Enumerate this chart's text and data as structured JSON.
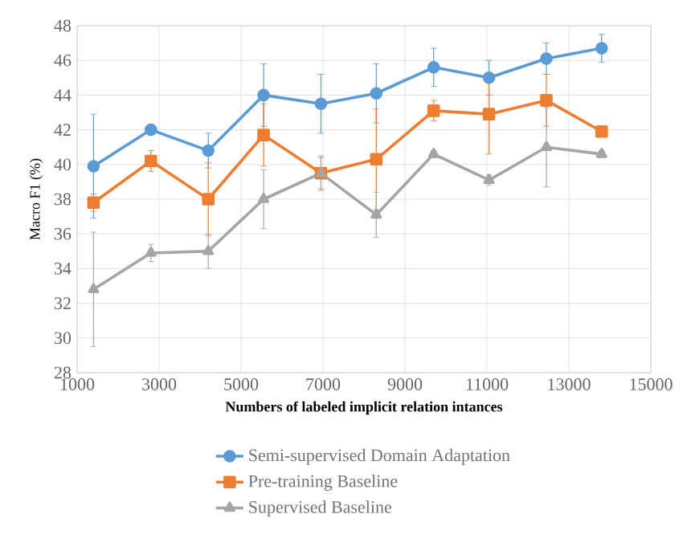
{
  "chart_data": {
    "type": "line",
    "xlabel": "Numbers of labeled implicit relation intances",
    "ylabel": "Macro F1 (%)",
    "x": [
      1400,
      2800,
      4200,
      5550,
      6950,
      8300,
      9700,
      11050,
      12450,
      13800
    ],
    "series": [
      {
        "name": "Semi-supervised Domain Adaptation",
        "color": "#5b9bd5",
        "marker": "circle",
        "values": [
          39.9,
          42,
          40.8,
          44,
          43.5,
          44.1,
          45.6,
          45,
          46.1,
          46.7
        ],
        "errors": [
          3,
          0.2,
          1,
          1.8,
          1.7,
          1.7,
          1.1,
          1,
          0.9,
          0.8
        ]
      },
      {
        "name": "Pre-training Baseline",
        "color": "#ed7d31",
        "marker": "square",
        "values": [
          37.8,
          40.2,
          38,
          41.7,
          39.5,
          40.3,
          43.1,
          42.9,
          43.7,
          41.9
        ],
        "errors": [
          0.5,
          0.6,
          2.1,
          1.8,
          0.9,
          2.9,
          0.6,
          2.3,
          1.5,
          0.2
        ]
      },
      {
        "name": "Supervised Baseline",
        "color": "#a5a5a5",
        "marker": "triangle",
        "values": [
          32.8,
          34.9,
          35,
          38,
          39.5,
          37.1,
          40.6,
          39.1,
          41,
          40.6
        ],
        "errors": [
          3.3,
          0.5,
          1,
          1.7,
          1,
          1.3,
          0.2,
          0.3,
          2.3,
          0.2
        ]
      }
    ],
    "xlim": [
      1000,
      15000
    ],
    "xticks": [
      1000,
      3000,
      5000,
      7000,
      9000,
      11000,
      13000,
      15000
    ],
    "ylim": [
      28,
      48
    ],
    "yticks": [
      28,
      30,
      32,
      34,
      36,
      38,
      40,
      42,
      44,
      46,
      48
    ],
    "grid": true,
    "legend": "bottom",
    "line_style": "solid"
  }
}
